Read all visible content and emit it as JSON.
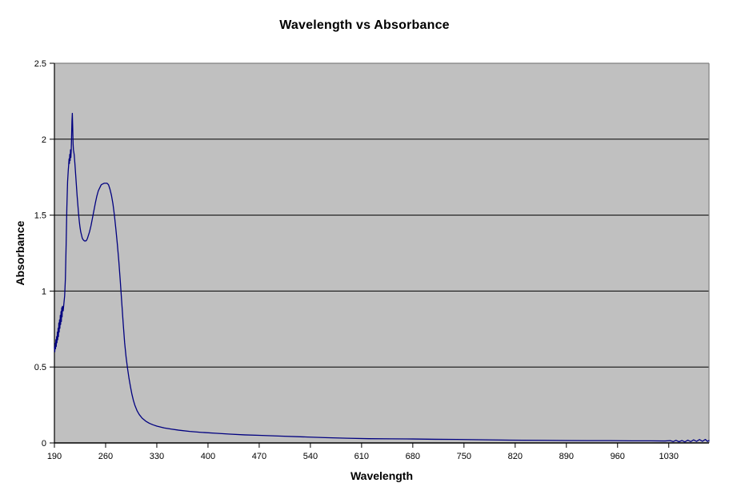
{
  "window": {
    "background": "#ffffff"
  },
  "chart_data": {
    "type": "line",
    "title": "Wavelength vs Absorbance",
    "xlabel": "Wavelength",
    "ylabel": "Absorbance",
    "xlim": [
      190,
      1085
    ],
    "ylim": [
      0,
      2.5
    ],
    "x_tick_values": [
      190,
      260,
      330,
      400,
      470,
      540,
      610,
      680,
      750,
      820,
      890,
      960,
      1030
    ],
    "x_tick_labels": [
      "190",
      "260",
      "330",
      "400",
      "470",
      "540",
      "610",
      "680",
      "750",
      "820",
      "890",
      "960",
      "1030"
    ],
    "y_tick_values": [
      0,
      0.5,
      1,
      1.5,
      2,
      2.5
    ],
    "y_tick_labels": [
      "0",
      "0.5",
      "1",
      "1.5",
      "2",
      "2.5"
    ],
    "grid": "horizontal-major-on",
    "legend": "none",
    "marker": "none",
    "colors": {
      "series_line": "#000080",
      "plot_background": "#c0c0c0",
      "plot_border": "#808080",
      "gridline": "#000000",
      "axis_line": "#000000",
      "text": "#000000",
      "page_background": "#ffffff"
    },
    "annotations": {
      "peak_1": {
        "wavelength": 214.5,
        "absorbance": 2.17
      },
      "valley": {
        "wavelength": 232,
        "absorbance": 1.33
      },
      "peak_2": {
        "wavelength": 260,
        "absorbance": 1.71
      }
    },
    "series": [
      {
        "name": "Absorbance",
        "points": [
          [
            190,
            0.63
          ],
          [
            190.5,
            0.6
          ],
          [
            191,
            0.655
          ],
          [
            191.5,
            0.62
          ],
          [
            192,
            0.68
          ],
          [
            192.5,
            0.635
          ],
          [
            193,
            0.7
          ],
          [
            193.5,
            0.66
          ],
          [
            194,
            0.73
          ],
          [
            194.5,
            0.68
          ],
          [
            195,
            0.755
          ],
          [
            195.5,
            0.7
          ],
          [
            196,
            0.79
          ],
          [
            196.5,
            0.73
          ],
          [
            197,
            0.81
          ],
          [
            197.5,
            0.755
          ],
          [
            198,
            0.84
          ],
          [
            198.5,
            0.78
          ],
          [
            199,
            0.865
          ],
          [
            199.5,
            0.8
          ],
          [
            200,
            0.89
          ],
          [
            200.5,
            0.83
          ],
          [
            201,
            0.9
          ],
          [
            202,
            0.87
          ],
          [
            203,
            0.92
          ],
          [
            204,
            0.97
          ],
          [
            205,
            1.08
          ],
          [
            206,
            1.3
          ],
          [
            207,
            1.55
          ],
          [
            208,
            1.72
          ],
          [
            209,
            1.8
          ],
          [
            209.5,
            1.83
          ],
          [
            210,
            1.87
          ],
          [
            210.5,
            1.84
          ],
          [
            211,
            1.9
          ],
          [
            211.5,
            1.86
          ],
          [
            212,
            1.93
          ],
          [
            212.5,
            1.88
          ],
          [
            213,
            1.93
          ],
          [
            213.5,
            2.02
          ],
          [
            214,
            2.12
          ],
          [
            214.5,
            2.17
          ],
          [
            215,
            2.08
          ],
          [
            215.5,
            1.97
          ],
          [
            216,
            1.93
          ],
          [
            217,
            1.9
          ],
          [
            218,
            1.84
          ],
          [
            219,
            1.77
          ],
          [
            220,
            1.7
          ],
          [
            221,
            1.63
          ],
          [
            222,
            1.57
          ],
          [
            223,
            1.51
          ],
          [
            224,
            1.46
          ],
          [
            225,
            1.42
          ],
          [
            226,
            1.39
          ],
          [
            227,
            1.37
          ],
          [
            228,
            1.35
          ],
          [
            229,
            1.34
          ],
          [
            230,
            1.335
          ],
          [
            231,
            1.33
          ],
          [
            232,
            1.33
          ],
          [
            233,
            1.33
          ],
          [
            234,
            1.335
          ],
          [
            235,
            1.345
          ],
          [
            236,
            1.36
          ],
          [
            238,
            1.39
          ],
          [
            240,
            1.43
          ],
          [
            242,
            1.48
          ],
          [
            244,
            1.53
          ],
          [
            246,
            1.58
          ],
          [
            248,
            1.625
          ],
          [
            250,
            1.66
          ],
          [
            252,
            1.68
          ],
          [
            254,
            1.7
          ],
          [
            256,
            1.705
          ],
          [
            258,
            1.71
          ],
          [
            260,
            1.71
          ],
          [
            262,
            1.71
          ],
          [
            264,
            1.7
          ],
          [
            266,
            1.67
          ],
          [
            268,
            1.63
          ],
          [
            270,
            1.575
          ],
          [
            272,
            1.5
          ],
          [
            274,
            1.41
          ],
          [
            276,
            1.31
          ],
          [
            278,
            1.2
          ],
          [
            280,
            1.07
          ],
          [
            282,
            0.93
          ],
          [
            284,
            0.79
          ],
          [
            286,
            0.66
          ],
          [
            288,
            0.565
          ],
          [
            290,
            0.49
          ],
          [
            292,
            0.425
          ],
          [
            294,
            0.37
          ],
          [
            296,
            0.32
          ],
          [
            298,
            0.28
          ],
          [
            300,
            0.248
          ],
          [
            303,
            0.212
          ],
          [
            306,
            0.187
          ],
          [
            310,
            0.163
          ],
          [
            315,
            0.143
          ],
          [
            320,
            0.129
          ],
          [
            325,
            0.119
          ],
          [
            330,
            0.111
          ],
          [
            340,
            0.099
          ],
          [
            350,
            0.091
          ],
          [
            360,
            0.084
          ],
          [
            375,
            0.076
          ],
          [
            390,
            0.07
          ],
          [
            410,
            0.064
          ],
          [
            430,
            0.058
          ],
          [
            450,
            0.053
          ],
          [
            470,
            0.05
          ],
          [
            500,
            0.045
          ],
          [
            530,
            0.04
          ],
          [
            560,
            0.035
          ],
          [
            590,
            0.031
          ],
          [
            620,
            0.028
          ],
          [
            650,
            0.027
          ],
          [
            680,
            0.026
          ],
          [
            710,
            0.024
          ],
          [
            740,
            0.023
          ],
          [
            770,
            0.021
          ],
          [
            800,
            0.019
          ],
          [
            830,
            0.018
          ],
          [
            860,
            0.017
          ],
          [
            890,
            0.016
          ],
          [
            920,
            0.015
          ],
          [
            950,
            0.015
          ],
          [
            980,
            0.014
          ],
          [
            1005,
            0.014
          ],
          [
            1025,
            0.013
          ],
          [
            1032,
            0.015
          ],
          [
            1036,
            0.009
          ],
          [
            1040,
            0.017
          ],
          [
            1044,
            0.008
          ],
          [
            1048,
            0.016
          ],
          [
            1052,
            0.007
          ],
          [
            1056,
            0.018
          ],
          [
            1060,
            0.009
          ],
          [
            1064,
            0.02
          ],
          [
            1068,
            0.01
          ],
          [
            1072,
            0.022
          ],
          [
            1076,
            0.011
          ],
          [
            1080,
            0.023
          ],
          [
            1083,
            0.01
          ],
          [
            1085,
            0.016
          ]
        ]
      }
    ]
  }
}
